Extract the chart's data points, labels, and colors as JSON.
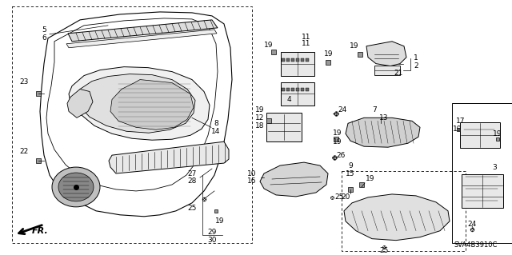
{
  "bg_color": "#ffffff",
  "diagram_code": "SVA4B3910C",
  "font_size": 6.5
}
